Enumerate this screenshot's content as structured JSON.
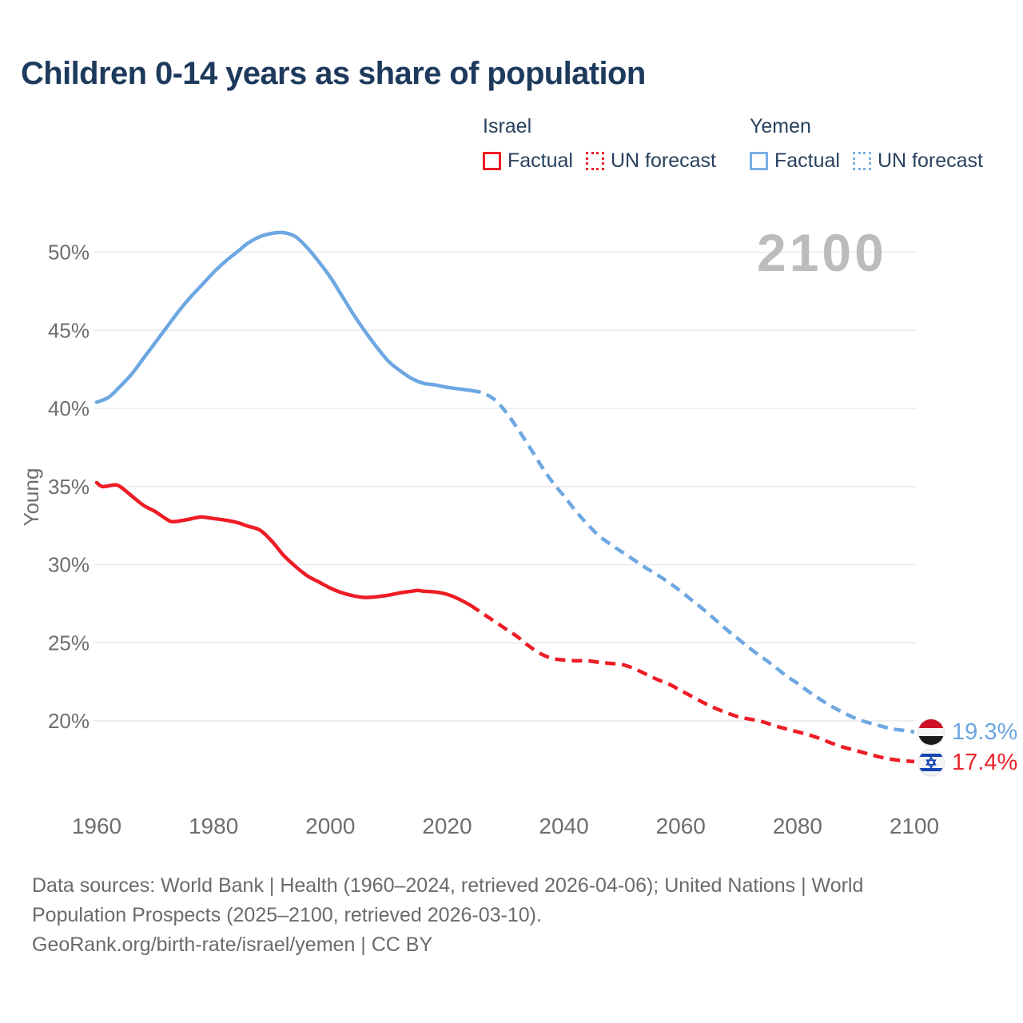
{
  "title": "Children 0-14 years as share of population",
  "watermark_year": "2100",
  "colors": {
    "israel_line": "#ee1c25",
    "yemen_line": "#6ea7e2",
    "title_text": "#1d3a5c",
    "legend_text": "#28415e",
    "axis_text": "#6e6e6e",
    "gridline": "#eaeaea",
    "watermark": "#bcbcbc",
    "footer_text": "#6a6a6a"
  },
  "legend": {
    "groups": [
      {
        "country": "Israel",
        "color": "#ee1c25",
        "items": [
          {
            "label": "Factual",
            "line_style": "solid"
          },
          {
            "label": "UN forecast",
            "line_style": "dashed"
          }
        ]
      },
      {
        "country": "Yemen",
        "color": "#6ea7e2",
        "items": [
          {
            "label": "Factual",
            "line_style": "solid"
          },
          {
            "label": "UN forecast",
            "line_style": "dashed"
          }
        ]
      }
    ]
  },
  "end_labels": [
    {
      "country": "Yemen",
      "value": "19.3%",
      "color": "#6ea7e2",
      "flag": "yemen-flag"
    },
    {
      "country": "Israel",
      "value": "17.4%",
      "color": "#e8242b",
      "flag": "israel-flag"
    }
  ],
  "footer": {
    "lines": [
      "Data sources: World Bank | Health (1960–2024, retrieved 2026-04-06); United Nations | World",
      "Population Prospects (2025–2100, retrieved 2026-03-10).",
      "GeoRank.org/birth-rate/israel/yemen | CC BY"
    ]
  },
  "chart_data": {
    "type": "line",
    "title": "Children 0-14 years as share of population",
    "xlabel": "",
    "ylabel": "Young",
    "x_ticks": [
      1960,
      1980,
      2000,
      2020,
      2040,
      2060,
      2080,
      2100
    ],
    "y_ticks": [
      {
        "value": 20,
        "label": "20%"
      },
      {
        "value": 25,
        "label": "25%"
      },
      {
        "value": 30,
        "label": "30%"
      },
      {
        "value": 35,
        "label": "35%"
      },
      {
        "value": 40,
        "label": "40%"
      },
      {
        "value": 45,
        "label": "45%"
      },
      {
        "value": 50,
        "label": "50%"
      }
    ],
    "xlim": [
      1958,
      2103
    ],
    "ylim": [
      16.5,
      52.5
    ],
    "grid": "horizontal",
    "legend_position": "top",
    "series": [
      {
        "name": "Yemen Factual",
        "color": "#6ea7e2",
        "style": "solid",
        "points": [
          [
            1960,
            40.4
          ],
          [
            1962,
            40.7
          ],
          [
            1964,
            41.4
          ],
          [
            1966,
            42.2
          ],
          [
            1968,
            43.2
          ],
          [
            1970,
            44.2
          ],
          [
            1972,
            45.2
          ],
          [
            1974,
            46.2
          ],
          [
            1976,
            47.1
          ],
          [
            1978,
            47.9
          ],
          [
            1980,
            48.7
          ],
          [
            1982,
            49.4
          ],
          [
            1984,
            50.0
          ],
          [
            1986,
            50.6
          ],
          [
            1988,
            51.0
          ],
          [
            1990,
            51.2
          ],
          [
            1992,
            51.25
          ],
          [
            1994,
            51.0
          ],
          [
            1996,
            50.3
          ],
          [
            1998,
            49.4
          ],
          [
            2000,
            48.4
          ],
          [
            2002,
            47.2
          ],
          [
            2004,
            46.0
          ],
          [
            2006,
            44.9
          ],
          [
            2008,
            43.9
          ],
          [
            2010,
            43.0
          ],
          [
            2012,
            42.4
          ],
          [
            2014,
            41.9
          ],
          [
            2016,
            41.6
          ],
          [
            2018,
            41.5
          ],
          [
            2020,
            41.35
          ],
          [
            2022,
            41.25
          ],
          [
            2024,
            41.15
          ]
        ]
      },
      {
        "name": "Yemen UN forecast",
        "color": "#6ea7e2",
        "style": "dashed",
        "points": [
          [
            2024,
            41.15
          ],
          [
            2026,
            41.0
          ],
          [
            2028,
            40.6
          ],
          [
            2030,
            39.8
          ],
          [
            2032,
            38.75
          ],
          [
            2034,
            37.6
          ],
          [
            2036,
            36.4
          ],
          [
            2038,
            35.3
          ],
          [
            2040,
            34.4
          ],
          [
            2042,
            33.45
          ],
          [
            2044,
            32.6
          ],
          [
            2046,
            31.85
          ],
          [
            2048,
            31.3
          ],
          [
            2050,
            30.8
          ],
          [
            2052,
            30.3
          ],
          [
            2054,
            29.8
          ],
          [
            2056,
            29.35
          ],
          [
            2058,
            28.85
          ],
          [
            2060,
            28.3
          ],
          [
            2062,
            27.7
          ],
          [
            2064,
            27.1
          ],
          [
            2066,
            26.45
          ],
          [
            2068,
            25.8
          ],
          [
            2070,
            25.2
          ],
          [
            2072,
            24.6
          ],
          [
            2074,
            24.05
          ],
          [
            2076,
            23.5
          ],
          [
            2078,
            22.9
          ],
          [
            2080,
            22.4
          ],
          [
            2082,
            21.85
          ],
          [
            2084,
            21.35
          ],
          [
            2086,
            20.9
          ],
          [
            2088,
            20.5
          ],
          [
            2090,
            20.15
          ],
          [
            2092,
            19.9
          ],
          [
            2094,
            19.7
          ],
          [
            2096,
            19.5
          ],
          [
            2098,
            19.4
          ],
          [
            2100,
            19.3
          ]
        ]
      },
      {
        "name": "Israel Factual",
        "color": "#ee1c25",
        "style": "solid",
        "points": [
          [
            1960,
            35.25
          ],
          [
            1961,
            35.0
          ],
          [
            1963,
            35.1
          ],
          [
            1964,
            35.0
          ],
          [
            1966,
            34.4
          ],
          [
            1968,
            33.8
          ],
          [
            1970,
            33.4
          ],
          [
            1972,
            32.9
          ],
          [
            1973,
            32.75
          ],
          [
            1975,
            32.85
          ],
          [
            1977,
            33.0
          ],
          [
            1978,
            33.05
          ],
          [
            1980,
            32.95
          ],
          [
            1982,
            32.85
          ],
          [
            1984,
            32.7
          ],
          [
            1986,
            32.45
          ],
          [
            1988,
            32.2
          ],
          [
            1990,
            31.5
          ],
          [
            1992,
            30.6
          ],
          [
            1994,
            29.9
          ],
          [
            1996,
            29.3
          ],
          [
            1998,
            28.9
          ],
          [
            2000,
            28.5
          ],
          [
            2002,
            28.2
          ],
          [
            2004,
            28.0
          ],
          [
            2006,
            27.9
          ],
          [
            2008,
            27.95
          ],
          [
            2010,
            28.05
          ],
          [
            2012,
            28.2
          ],
          [
            2014,
            28.3
          ],
          [
            2015,
            28.35
          ],
          [
            2016,
            28.3
          ],
          [
            2018,
            28.25
          ],
          [
            2020,
            28.1
          ],
          [
            2022,
            27.8
          ],
          [
            2024,
            27.4
          ]
        ]
      },
      {
        "name": "Israel UN forecast",
        "color": "#ee1c25",
        "style": "dashed",
        "points": [
          [
            2024,
            27.4
          ],
          [
            2026,
            26.9
          ],
          [
            2028,
            26.4
          ],
          [
            2030,
            25.9
          ],
          [
            2032,
            25.4
          ],
          [
            2034,
            24.8
          ],
          [
            2036,
            24.3
          ],
          [
            2038,
            24.0
          ],
          [
            2040,
            23.9
          ],
          [
            2042,
            23.85
          ],
          [
            2044,
            23.85
          ],
          [
            2046,
            23.75
          ],
          [
            2048,
            23.68
          ],
          [
            2050,
            23.6
          ],
          [
            2052,
            23.35
          ],
          [
            2054,
            23.0
          ],
          [
            2056,
            22.65
          ],
          [
            2058,
            22.35
          ],
          [
            2060,
            21.95
          ],
          [
            2062,
            21.55
          ],
          [
            2064,
            21.15
          ],
          [
            2066,
            20.8
          ],
          [
            2068,
            20.5
          ],
          [
            2070,
            20.25
          ],
          [
            2072,
            20.1
          ],
          [
            2074,
            19.95
          ],
          [
            2076,
            19.7
          ],
          [
            2078,
            19.5
          ],
          [
            2080,
            19.3
          ],
          [
            2082,
            19.1
          ],
          [
            2084,
            18.85
          ],
          [
            2086,
            18.55
          ],
          [
            2088,
            18.3
          ],
          [
            2090,
            18.1
          ],
          [
            2092,
            17.9
          ],
          [
            2094,
            17.7
          ],
          [
            2096,
            17.55
          ],
          [
            2098,
            17.45
          ],
          [
            2100,
            17.4
          ]
        ]
      }
    ]
  }
}
